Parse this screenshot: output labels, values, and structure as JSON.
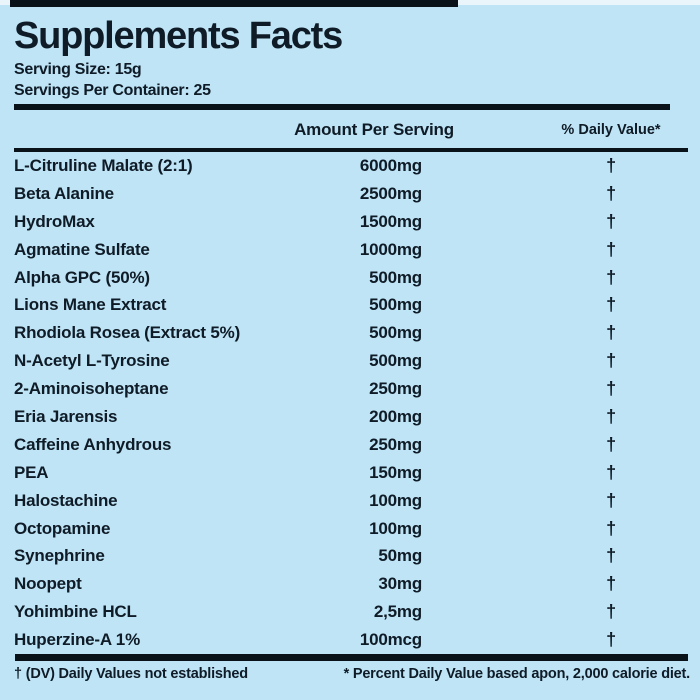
{
  "page": {
    "background_color": "#bee4f6",
    "text_color": "#0f1b26",
    "rule_color": "#0a1219"
  },
  "label": {
    "title": "Supplements Facts",
    "serving_size": "Serving Size: 15g",
    "servings_per_container": "Servings Per Container: 25",
    "header": {
      "amount": "Amount Per Serving",
      "daily_value": "% Daily Value*"
    },
    "rows": [
      {
        "name": "L-Citruline Malate (2:1)",
        "amount": "6000mg",
        "dv": "†"
      },
      {
        "name": "Beta Alanine",
        "amount": "2500mg",
        "dv": "†"
      },
      {
        "name": "HydroMax",
        "amount": "1500mg",
        "dv": "†"
      },
      {
        "name": "Agmatine Sulfate",
        "amount": "1000mg",
        "dv": "†"
      },
      {
        "name": "Alpha GPC (50%)",
        "amount": "500mg",
        "dv": "†"
      },
      {
        "name": "Lions Mane Extract",
        "amount": "500mg",
        "dv": "†"
      },
      {
        "name": "Rhodiola Rosea (Extract 5%)",
        "amount": "500mg",
        "dv": "†"
      },
      {
        "name": "N-Acetyl L-Tyrosine",
        "amount": "500mg",
        "dv": "†"
      },
      {
        "name": "2-Aminoisoheptane",
        "amount": "250mg",
        "dv": "†"
      },
      {
        "name": "Eria Jarensis",
        "amount": "200mg",
        "dv": "†"
      },
      {
        "name": "Caffeine Anhydrous",
        "amount": "250mg",
        "dv": "†"
      },
      {
        "name": "PEA",
        "amount": "150mg",
        "dv": "†"
      },
      {
        "name": "Halostachine",
        "amount": "100mg",
        "dv": "†"
      },
      {
        "name": "Octopamine",
        "amount": "100mg",
        "dv": "†"
      },
      {
        "name": "Synephrine",
        "amount": "50mg",
        "dv": "†"
      },
      {
        "name": "Noopept",
        "amount": "30mg",
        "dv": "†"
      },
      {
        "name": "Yohimbine HCL",
        "amount": "2,5mg",
        "dv": "†"
      },
      {
        "name": "Huperzine-A 1%",
        "amount": "100mcg",
        "dv": "†"
      }
    ],
    "footnotes": {
      "dv_note": "† (DV) Daily Values not established",
      "percent_note": "* Percent Daily Value based apon, 2,000 calorie diet."
    }
  }
}
